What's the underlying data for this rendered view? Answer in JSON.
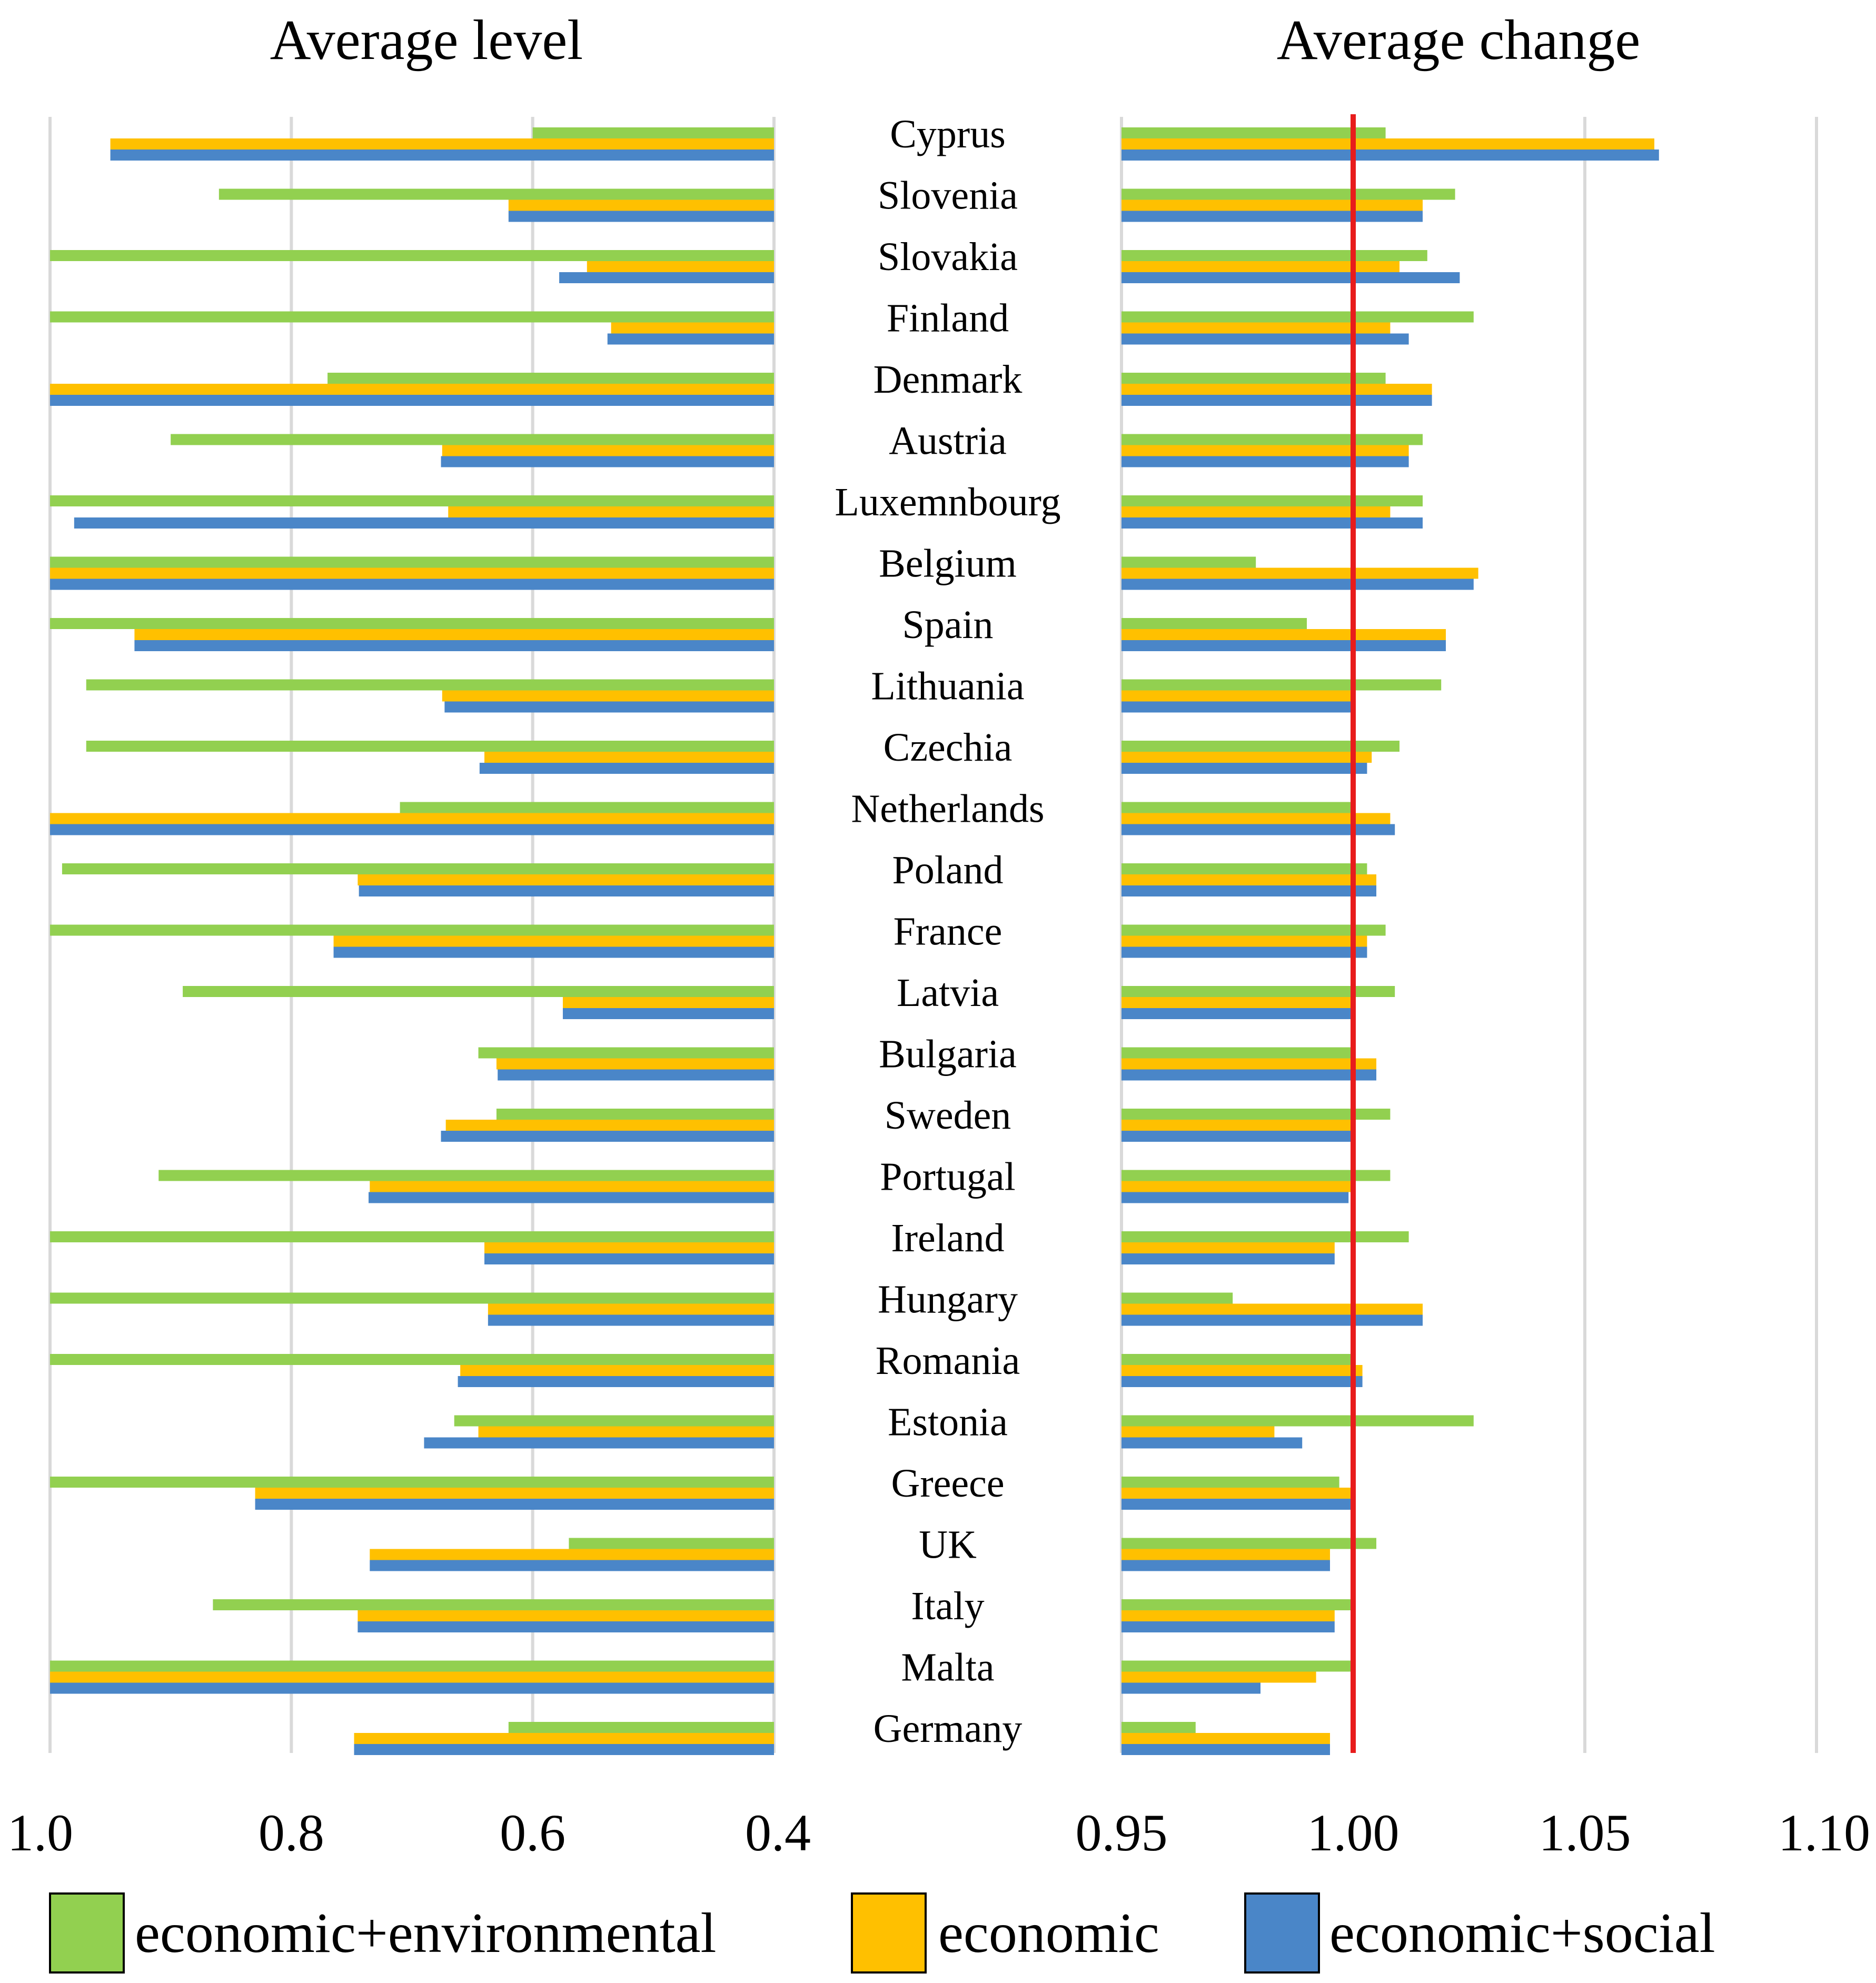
{
  "legend": [
    {
      "label": "economic+environmental",
      "color": "#92D050"
    },
    {
      "label": "economic",
      "color": "#FFC000"
    },
    {
      "label": "economic+social",
      "color": "#4A86C8"
    }
  ],
  "reference_line": {
    "value": 1.0,
    "color": "#E81C1C"
  },
  "grid_color": "#D9D9D9",
  "chart_data": [
    {
      "type": "bar",
      "orientation": "horizontal",
      "title": "Average level",
      "x_reversed": true,
      "xlim": [
        0.4,
        1.0
      ],
      "ticks": [
        1.0,
        0.8,
        0.6,
        0.4
      ],
      "tick_labels": [
        "1.0",
        "0.8",
        "0.6",
        "0.4"
      ],
      "categories": [
        "Cyprus",
        "Slovenia",
        "Slovakia",
        "Finland",
        "Denmark",
        "Austria",
        "Luxemnbourg",
        "Belgium",
        "Spain",
        "Lithuania",
        "Czechia",
        "Netherlands",
        "Poland",
        "France",
        "Latvia",
        "Bulgaria",
        "Sweden",
        "Portugal",
        "Ireland",
        "Hungary",
        "Romania",
        "Estonia",
        "Greece",
        "UK",
        "Italy",
        "Malta",
        "Germany"
      ],
      "series": [
        {
          "name": "economic+environmental",
          "values": [
            0.6,
            0.86,
            1.0,
            1.0,
            0.77,
            0.9,
            1.0,
            1.0,
            1.0,
            0.97,
            0.97,
            0.71,
            0.99,
            1.0,
            0.89,
            0.645,
            0.63,
            0.91,
            1.0,
            1.0,
            1.0,
            0.665,
            1.0,
            0.57,
            0.865,
            1.0,
            0.62
          ]
        },
        {
          "name": "economic",
          "values": [
            0.95,
            0.62,
            0.555,
            0.535,
            1.0,
            0.675,
            0.67,
            1.0,
            0.93,
            0.675,
            0.64,
            1.0,
            0.745,
            0.765,
            0.575,
            0.63,
            0.672,
            0.735,
            0.64,
            0.637,
            0.66,
            0.645,
            0.83,
            0.735,
            0.745,
            1.0,
            0.748
          ]
        },
        {
          "name": "economic+social",
          "values": [
            0.95,
            0.62,
            0.578,
            0.538,
            1.0,
            0.676,
            0.98,
            1.0,
            0.93,
            0.673,
            0.644,
            1.0,
            0.744,
            0.765,
            0.575,
            0.629,
            0.676,
            0.736,
            0.64,
            0.637,
            0.662,
            0.69,
            0.83,
            0.735,
            0.745,
            1.0,
            0.748
          ]
        }
      ]
    },
    {
      "type": "bar",
      "orientation": "horizontal",
      "title": "Average change",
      "xlim": [
        0.95,
        1.1
      ],
      "ticks": [
        0.95,
        1.0,
        1.05,
        1.1
      ],
      "tick_labels": [
        "0.95",
        "1.00",
        "1.05",
        "1.10"
      ],
      "categories": [
        "Cyprus",
        "Slovenia",
        "Slovakia",
        "Finland",
        "Denmark",
        "Austria",
        "Luxemnbourg",
        "Belgium",
        "Spain",
        "Lithuania",
        "Czechia",
        "Netherlands",
        "Poland",
        "France",
        "Latvia",
        "Bulgaria",
        "Sweden",
        "Portugal",
        "Ireland",
        "Hungary",
        "Romania",
        "Estonia",
        "Greece",
        "UK",
        "Italy",
        "Malta",
        "Germany"
      ],
      "series": [
        {
          "name": "economic+environmental",
          "values": [
            1.007,
            1.022,
            1.016,
            1.026,
            1.007,
            1.015,
            1.015,
            0.979,
            0.99,
            1.019,
            1.01,
            1.0,
            1.003,
            1.007,
            1.009,
            1.0,
            1.008,
            1.008,
            1.012,
            0.974,
            1.0,
            1.026,
            0.997,
            1.005,
            1.0,
            1.0,
            0.966
          ]
        },
        {
          "name": "economic",
          "values": [
            1.065,
            1.015,
            1.01,
            1.008,
            1.017,
            1.012,
            1.008,
            1.027,
            1.02,
            1.0,
            1.004,
            1.008,
            1.005,
            1.003,
            1.0,
            1.005,
            1.0,
            1.0,
            0.996,
            1.015,
            1.002,
            0.983,
            1.0,
            0.995,
            0.996,
            0.992,
            0.995
          ]
        },
        {
          "name": "economic+social",
          "values": [
            1.066,
            1.015,
            1.023,
            1.012,
            1.017,
            1.012,
            1.015,
            1.026,
            1.02,
            1.0,
            1.003,
            1.009,
            1.005,
            1.003,
            1.0,
            1.005,
            1.0,
            0.999,
            0.996,
            1.015,
            1.002,
            0.989,
            1.0,
            0.995,
            0.996,
            0.98,
            0.995
          ]
        }
      ]
    }
  ]
}
